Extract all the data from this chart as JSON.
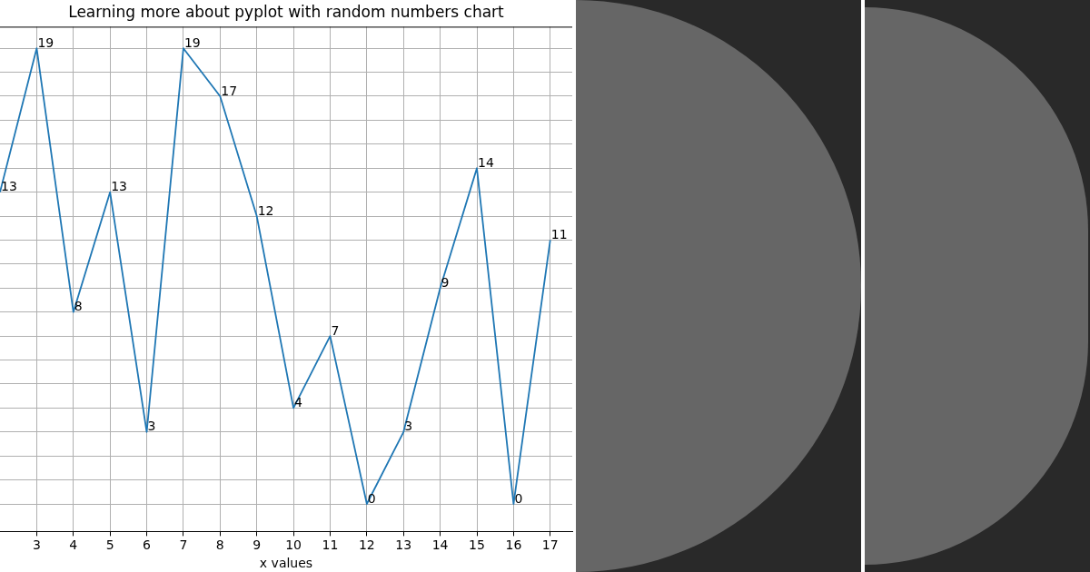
{
  "chart_data": {
    "type": "line",
    "title": "Learning more about pyplot with random numbers chart",
    "xlabel": "x values",
    "x": [
      2,
      3,
      4,
      5,
      6,
      7,
      8,
      9,
      10,
      11,
      12,
      13,
      14,
      15,
      16,
      17
    ],
    "series": [
      {
        "color": "#1f77b4",
        "values": [
          13,
          19,
          8,
          13,
          3,
          19,
          17,
          12,
          4,
          7,
          0,
          3,
          9,
          14,
          0,
          11
        ]
      }
    ],
    "xlim": [
      2,
      17.6
    ],
    "xticks": [
      3,
      4,
      5,
      6,
      7,
      8,
      9,
      10,
      11,
      12,
      13,
      14,
      15,
      16,
      17
    ],
    "ylim": [
      -1.15,
      19.9
    ],
    "yticks": [
      {
        "value": 0,
        "label": null
      },
      {
        "value": 1,
        "label": null
      },
      {
        "value": 2,
        "label": null
      },
      {
        "value": 3,
        "label": null
      },
      {
        "value": 4,
        "label": null
      },
      {
        "value": 5,
        "label": null
      },
      {
        "value": 6,
        "label": null
      },
      {
        "value": 7,
        "label": null
      },
      {
        "value": 8,
        "label": null
      },
      {
        "value": 9,
        "label": null
      },
      {
        "value": 10,
        "label": null
      },
      {
        "value": 11,
        "label": null
      },
      {
        "value": 12,
        "label": null
      },
      {
        "value": 13,
        "label": null
      },
      {
        "value": 14,
        "label": null
      },
      {
        "value": 15,
        "label": null
      },
      {
        "value": 16,
        "label": null
      },
      {
        "value": 17,
        "label": null
      },
      {
        "value": 18,
        "label": null
      },
      {
        "value": 19,
        "label": null
      }
    ],
    "grid": true,
    "tick_labels": "x",
    "data_labels": true,
    "marker": "none",
    "line_style": "solid"
  }
}
